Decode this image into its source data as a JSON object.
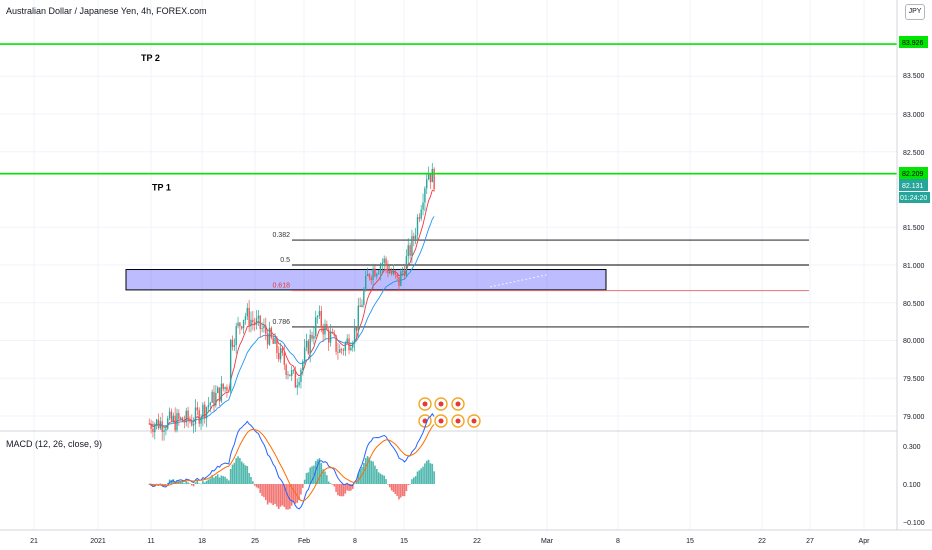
{
  "header": {
    "symbol_title": "Australian Dollar / Japanese Yen, 4h, FOREX.com",
    "currency_badge": "JPY"
  },
  "macd": {
    "title": "MACD (12, 26, close, 9)",
    "ticks": [
      "0.300",
      "0.100",
      "−0.100"
    ]
  },
  "colors": {
    "up_candle": "#26a69a",
    "down_candle": "#ef5350",
    "target_line": "#00e600",
    "zone_fill": "#6a6bff",
    "macd_line": "#2962ff",
    "signal_line": "#ff6d00"
  },
  "chart_data": {
    "type": "candlestick",
    "price_axis": {
      "ticks": [
        "83.926",
        "83.500",
        "83.000",
        "82.500",
        "82.209",
        "82.131",
        "81.500",
        "81.000",
        "80.500",
        "80.000",
        "79.500",
        "79.000"
      ],
      "labeled_values": [
        {
          "label": "83.926",
          "kind": "target-tp2"
        },
        {
          "label": "82.209",
          "kind": "target-tp1"
        },
        {
          "label": "82.131",
          "kind": "last-price"
        },
        {
          "label": "01:24:20",
          "kind": "bar-countdown"
        }
      ]
    },
    "time_axis": {
      "ticks": [
        "21",
        "2021",
        "11",
        "18",
        "25",
        "Feb",
        "8",
        "15",
        "22",
        "Mar",
        "8",
        "15",
        "22",
        "27",
        "Apr"
      ]
    },
    "targets": [
      {
        "label": "TP 2",
        "price": 83.926
      },
      {
        "label": "TP 1",
        "price": 82.209
      }
    ],
    "fibonacci": [
      {
        "label": "0.382",
        "price": 81.33
      },
      {
        "label": "0.5",
        "price": 81.0
      },
      {
        "label": "0.618",
        "price": 80.66
      },
      {
        "label": "0.786",
        "price": 80.18
      }
    ],
    "demand_zone": {
      "top": 80.94,
      "bottom": 80.67
    },
    "last_price": 82.131,
    "countdown": "01:24:20",
    "candle_path": [
      {
        "date": "Dec 20",
        "price": 78.9
      },
      {
        "date": "Dec 26",
        "price": 78.95
      },
      {
        "date": "Dec 31",
        "price": 79.45
      },
      {
        "date": "Jan 6",
        "price": 80.9
      },
      {
        "date": "Jan 9",
        "price": 80.6
      },
      {
        "date": "Jan 13",
        "price": 80.4
      },
      {
        "date": "Jan 15",
        "price": 80.8
      },
      {
        "date": "Jan 18",
        "price": 79.75
      },
      {
        "date": "Jan 21",
        "price": 80.35
      },
      {
        "date": "Jan 24",
        "price": 80.1
      },
      {
        "date": "Jan 28",
        "price": 79.45
      },
      {
        "date": "Jan 31",
        "price": 80.3
      },
      {
        "date": "Feb 3",
        "price": 79.85
      },
      {
        "date": "Feb 5",
        "price": 80.1
      },
      {
        "date": "Feb 7",
        "price": 80.9
      },
      {
        "date": "Feb 9",
        "price": 81.05
      },
      {
        "date": "Feb 11",
        "price": 80.75
      },
      {
        "date": "Feb 13",
        "price": 81.3
      },
      {
        "date": "Feb 15",
        "price": 82.25
      },
      {
        "date": "Feb 16",
        "price": 82.13
      }
    ],
    "event_markers": 7
  }
}
